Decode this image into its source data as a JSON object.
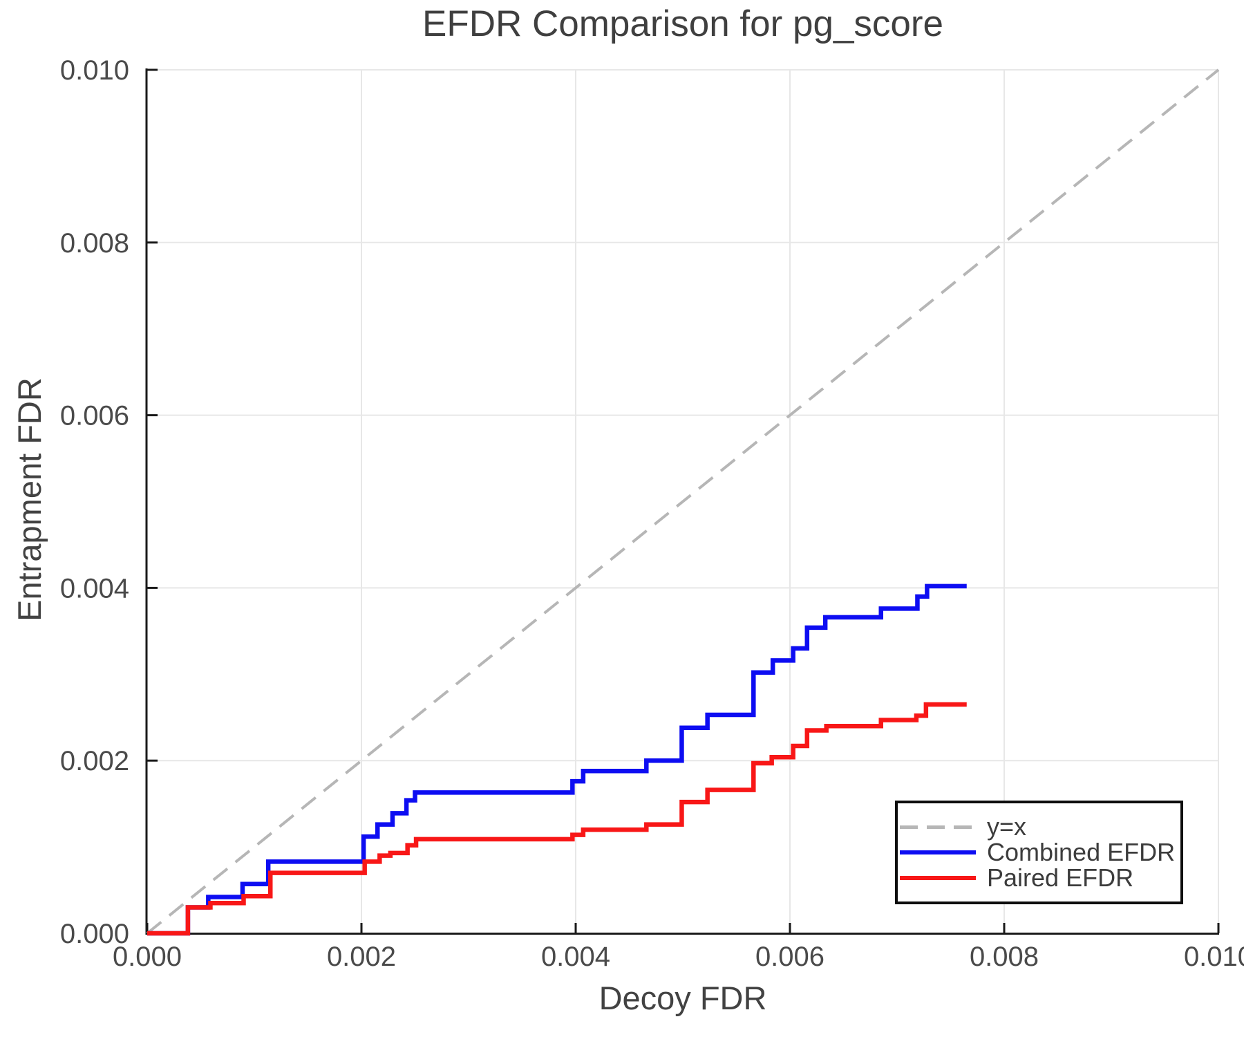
{
  "chart_data": {
    "type": "line",
    "title": "EFDR Comparison for pg_score",
    "xlabel": "Decoy FDR",
    "ylabel": "Entrapment FDR",
    "xlim": [
      0,
      0.01
    ],
    "ylim": [
      0,
      0.01
    ],
    "grid": true,
    "legend_position": "bottom-right",
    "xticks": {
      "values": [
        0,
        0.002,
        0.004,
        0.006,
        0.008,
        0.01
      ],
      "labels": [
        "0.000",
        "0.002",
        "0.004",
        "0.006",
        "0.008",
        "0.010"
      ]
    },
    "yticks": {
      "values": [
        0,
        0.002,
        0.004,
        0.006,
        0.008,
        0.01
      ],
      "labels": [
        "0.000",
        "0.002",
        "0.004",
        "0.006",
        "0.008",
        "0.010"
      ]
    },
    "reference_line": {
      "label": "y=x",
      "from": [
        0,
        0
      ],
      "to": [
        0.01,
        0.01
      ],
      "style": "dashed",
      "color": "#b6b6b6"
    },
    "series": [
      {
        "name": "Combined EFDR",
        "color": "#0d0df2",
        "step_type": "post",
        "start": [
          0,
          0
        ],
        "end_x": 0.00765,
        "points": [
          [
            0.00038,
            0.0003
          ],
          [
            0.00057,
            0.00042
          ],
          [
            0.00089,
            0.00057
          ],
          [
            0.00113,
            0.00083
          ],
          [
            0.00202,
            0.00112
          ],
          [
            0.00215,
            0.00126
          ],
          [
            0.00229,
            0.00139
          ],
          [
            0.00242,
            0.00154
          ],
          [
            0.0025,
            0.00163
          ],
          [
            0.00397,
            0.00176
          ],
          [
            0.00407,
            0.00188
          ],
          [
            0.00466,
            0.002
          ],
          [
            0.00499,
            0.00238
          ],
          [
            0.00523,
            0.00253
          ],
          [
            0.00566,
            0.00302
          ],
          [
            0.00584,
            0.00316
          ],
          [
            0.00603,
            0.0033
          ],
          [
            0.00616,
            0.00354
          ],
          [
            0.00633,
            0.00366
          ],
          [
            0.00685,
            0.00376
          ],
          [
            0.00719,
            0.0039
          ],
          [
            0.00728,
            0.00402
          ]
        ]
      },
      {
        "name": "Paired EFDR",
        "color": "#f81717",
        "step_type": "post",
        "start": [
          0,
          0
        ],
        "end_x": 0.00765,
        "points": [
          [
            0.00038,
            0.0003
          ],
          [
            0.00059,
            0.00035
          ],
          [
            0.0009,
            0.00043
          ],
          [
            0.00115,
            0.0007
          ],
          [
            0.00203,
            0.00083
          ],
          [
            0.00217,
            0.0009
          ],
          [
            0.00227,
            0.00093
          ],
          [
            0.00243,
            0.00102
          ],
          [
            0.00251,
            0.00109
          ],
          [
            0.00397,
            0.00114
          ],
          [
            0.00407,
            0.0012
          ],
          [
            0.00466,
            0.00126
          ],
          [
            0.00499,
            0.00152
          ],
          [
            0.00523,
            0.00166
          ],
          [
            0.00566,
            0.00197
          ],
          [
            0.00583,
            0.00204
          ],
          [
            0.00603,
            0.00217
          ],
          [
            0.00616,
            0.00235
          ],
          [
            0.00634,
            0.0024
          ],
          [
            0.00685,
            0.00247
          ],
          [
            0.00718,
            0.00252
          ],
          [
            0.00727,
            0.00265
          ]
        ]
      }
    ],
    "style_colors": {
      "gridline": "#e7e7e7",
      "spine": "#1a1a1a",
      "tick_label": "#4a4a4a",
      "title_text": "#3f3f3f",
      "legend_border": "#0d0d0d"
    }
  }
}
